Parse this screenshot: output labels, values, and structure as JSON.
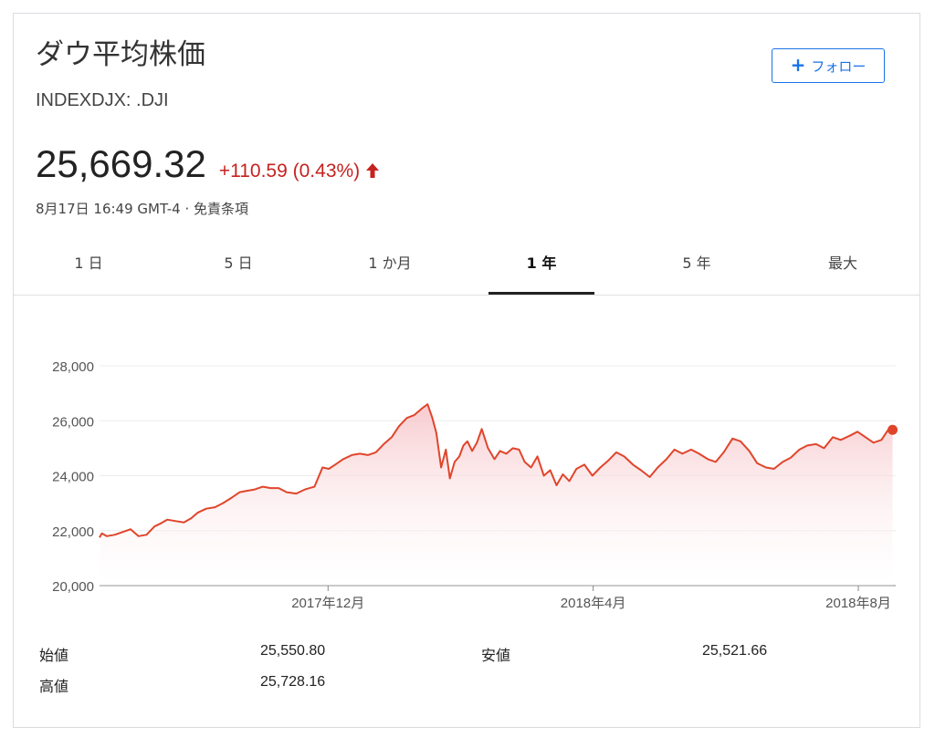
{
  "header": {
    "title": "ダウ平均株価",
    "ticker": "INDEXDJX: .DJI",
    "follow_label": "フォロー"
  },
  "quote": {
    "price": "25,669.32",
    "change": "+110.59 (0.43%)",
    "direction": "up",
    "timestamp": "8月17日 16:49 GMT-4 · 免責条項"
  },
  "tabs": [
    {
      "label": "1 日",
      "active": false
    },
    {
      "label": "5 日",
      "active": false
    },
    {
      "label": "1 か月",
      "active": false
    },
    {
      "label": "1 年",
      "active": true
    },
    {
      "label": "5 年",
      "active": false
    },
    {
      "label": "最大",
      "active": false
    }
  ],
  "colors": {
    "line": "#e0452b",
    "fill_top": "#f7c8cc",
    "accent": "#1a73e8",
    "change": "#c5221f"
  },
  "chart_data": {
    "type": "area",
    "title": "",
    "xlabel": "",
    "ylabel": "",
    "ylim": [
      20000,
      28000
    ],
    "yticks": [
      20000,
      22000,
      24000,
      26000,
      28000
    ],
    "ytick_labels": [
      "20,000",
      "22,000",
      "24,000",
      "26,000",
      "28,000"
    ],
    "xtick_labels": [
      {
        "label": "2017年12月",
        "x": 2017.917
      },
      {
        "label": "2018年4月",
        "x": 2018.25
      },
      {
        "label": "2018年8月",
        "x": 2018.583
      }
    ],
    "xlim": [
      2017.63,
      2018.63
    ],
    "grid": true,
    "series": [
      {
        "x": [
          2017.63,
          2017.633,
          2017.639,
          2017.649,
          2017.659,
          2017.669,
          2017.679,
          2017.689,
          2017.699,
          2017.706,
          2017.715,
          2017.725,
          2017.736,
          2017.745,
          2017.753,
          2017.764,
          2017.775,
          2017.785,
          2017.796,
          2017.806,
          2017.815,
          2017.825,
          2017.835,
          2017.845,
          2017.855,
          2017.865,
          2017.877,
          2017.888,
          2017.9,
          2017.91,
          2017.918,
          2017.926,
          2017.936,
          2017.947,
          2017.957,
          2017.967,
          2017.977,
          2017.987,
          2017.997,
          2018.006,
          2018.016,
          2018.025,
          2018.035,
          2018.042,
          2018.048,
          2018.053,
          2018.059,
          2018.065,
          2018.07,
          2018.076,
          2018.082,
          2018.087,
          2018.092,
          2018.098,
          2018.104,
          2018.11,
          2018.118,
          2018.126,
          2018.133,
          2018.141,
          2018.149,
          2018.157,
          2018.164,
          2018.172,
          2018.18,
          2018.188,
          2018.196,
          2018.204,
          2018.212,
          2018.22,
          2018.229,
          2018.239,
          2018.249,
          2018.259,
          2018.269,
          2018.279,
          2018.289,
          2018.3,
          2018.31,
          2018.321,
          2018.331,
          2018.342,
          2018.352,
          2018.362,
          2018.373,
          2018.383,
          2018.394,
          2018.404,
          2018.414,
          2018.425,
          2018.435,
          2018.446,
          2018.456,
          2018.467,
          2018.477,
          2018.488,
          2018.498,
          2018.509,
          2018.519,
          2018.53,
          2018.54,
          2018.551,
          2018.561,
          2018.572,
          2018.582,
          2018.592,
          2018.602,
          2018.612,
          2018.62,
          2018.626
        ],
        "values": [
          21750,
          21900,
          21800,
          21850,
          21950,
          22050,
          21800,
          21850,
          22150,
          22250,
          22400,
          22350,
          22300,
          22450,
          22650,
          22800,
          22850,
          23000,
          23200,
          23400,
          23450,
          23500,
          23600,
          23550,
          23550,
          23400,
          23350,
          23500,
          23600,
          24300,
          24250,
          24400,
          24600,
          24750,
          24800,
          24750,
          24850,
          25150,
          25400,
          25800,
          26100,
          26200,
          26450,
          26600,
          26100,
          25550,
          24300,
          24950,
          23900,
          24500,
          24700,
          25100,
          25250,
          24900,
          25200,
          25700,
          25000,
          24600,
          24900,
          24800,
          25000,
          24950,
          24500,
          24300,
          24700,
          24000,
          24200,
          23650,
          24050,
          23800,
          24250,
          24400,
          24000,
          24300,
          24550,
          24850,
          24700,
          24400,
          24200,
          23950,
          24300,
          24600,
          24950,
          24800,
          24950,
          24800,
          24600,
          24500,
          24850,
          25350,
          25250,
          24900,
          24450,
          24300,
          24250,
          24500,
          24650,
          24950,
          25100,
          25150,
          25000,
          25400,
          25300,
          25450,
          25600,
          25400,
          25200,
          25300,
          25650,
          25669
        ]
      }
    ]
  },
  "stats": {
    "open_label": "始値",
    "open_value": "25,550.80",
    "low_label": "安値",
    "low_value": "25,521.66",
    "high_label": "高値",
    "high_value": "25,728.16"
  }
}
